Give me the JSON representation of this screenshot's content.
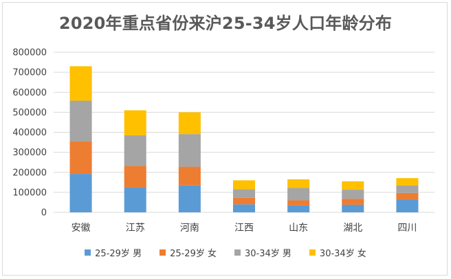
{
  "chart_data": {
    "type": "bar",
    "stacked": true,
    "title": "2020年重点省份来沪25-34岁人口年龄分布",
    "categories": [
      "安徽",
      "江苏",
      "河南",
      "江西",
      "山东",
      "湖北",
      "四川"
    ],
    "series": [
      {
        "name": "25-29岁 男",
        "color": "#5b9bd5",
        "values": [
          192000,
          125000,
          135000,
          40000,
          35000,
          38000,
          65000
        ]
      },
      {
        "name": "25-29岁 女",
        "color": "#ed7d31",
        "values": [
          163000,
          107000,
          93000,
          33000,
          25000,
          30000,
          32000
        ]
      },
      {
        "name": "30-34岁 男",
        "color": "#a5a5a5",
        "values": [
          203000,
          153000,
          163000,
          43000,
          62000,
          45000,
          38000
        ]
      },
      {
        "name": "30-34岁 女",
        "color": "#ffc000",
        "values": [
          172000,
          125000,
          109000,
          44000,
          43000,
          42000,
          36000
        ]
      }
    ],
    "ylim": [
      0,
      800000
    ],
    "yticks": [
      "0",
      "100000",
      "200000",
      "300000",
      "400000",
      "500000",
      "600000",
      "700000",
      "800000"
    ],
    "grid": true,
    "legend_position": "bottom"
  }
}
